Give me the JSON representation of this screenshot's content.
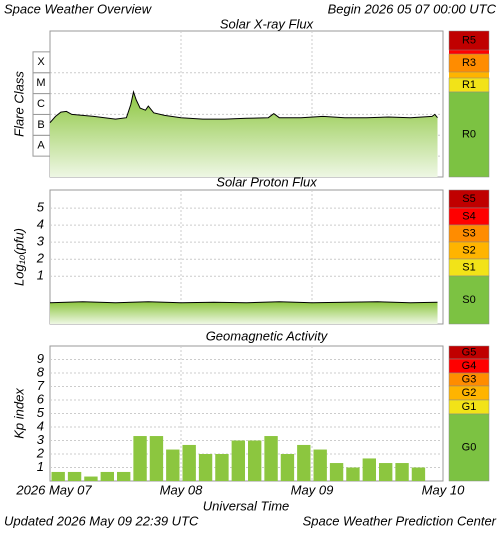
{
  "header": {
    "title": "Space Weather Overview",
    "begin": "Begin 2026 05 07 00:00 UTC"
  },
  "footer": {
    "updated": "Updated 2026 May 09 22:39 UTC",
    "credit": "Space Weather Prediction Center"
  },
  "x_axis": {
    "label": "Universal Time",
    "xlim": [
      0,
      72
    ],
    "xticks": [
      {
        "value": 0,
        "label": "2026 May 07"
      },
      {
        "value": 24,
        "label": "May 08"
      },
      {
        "value": 48,
        "label": "May 09"
      },
      {
        "value": 72,
        "label": "May 10"
      }
    ]
  },
  "chart_data": [
    {
      "type": "area",
      "title": "Solar X-ray Flux",
      "ylabel": "Flare Class",
      "log_scale": true,
      "color": "#8cc63f",
      "line_color": "#000000",
      "ylim": [
        1e-09,
        0.01
      ],
      "yticks": [
        {
          "value": 1e-08,
          "label": "A"
        },
        {
          "value": 1e-07,
          "label": "B"
        },
        {
          "value": 1e-06,
          "label": "C"
        },
        {
          "value": 1e-05,
          "label": "M"
        },
        {
          "value": 0.0001,
          "label": "X"
        }
      ],
      "x": [
        0,
        1,
        2,
        3,
        4,
        6,
        8,
        10,
        12,
        14,
        14.8,
        15.3,
        15.8,
        16.5,
        17.5,
        18,
        19,
        21,
        24,
        28,
        32,
        36,
        40,
        41,
        42,
        46,
        50,
        54,
        58,
        62,
        66,
        70,
        70.5,
        71
      ],
      "values": [
        4e-07,
        8e-07,
        1.3e-06,
        1.4e-06,
        1e-06,
        9e-07,
        8e-07,
        7e-07,
        6e-07,
        7e-07,
        3e-06,
        1.2e-05,
        5e-06,
        2e-06,
        1.6e-06,
        2.5e-06,
        1.2e-06,
        9e-07,
        7e-07,
        6e-07,
        6e-07,
        6.5e-07,
        7e-07,
        1.1e-06,
        7e-07,
        7e-07,
        8e-07,
        7e-07,
        7e-07,
        7.5e-07,
        7e-07,
        8e-07,
        1e-06,
        7e-07
      ],
      "scale": [
        {
          "label": "R5",
          "color": "#c00000"
        },
        {
          "label": "R3",
          "color": "#ff8c00"
        },
        {
          "label": "R1",
          "color": "#f2e318"
        },
        {
          "label": "R0",
          "color": "#7cc242"
        }
      ]
    },
    {
      "type": "area",
      "title": "Solar Proton Flux",
      "ylabel": "Log₁₀(pfu)",
      "log_scale": false,
      "color": "#8cc63f",
      "line_color": "#000000",
      "ylim": [
        -1.8,
        6.06
      ],
      "yticks": [
        1,
        2,
        3,
        4,
        5
      ],
      "x": [
        0,
        6,
        12,
        18,
        24,
        30,
        36,
        42,
        48,
        54,
        60,
        66,
        71
      ],
      "values": [
        -0.55,
        -0.5,
        -0.55,
        -0.5,
        -0.55,
        -0.52,
        -0.55,
        -0.5,
        -0.55,
        -0.52,
        -0.5,
        -0.55,
        -0.52
      ],
      "scale": [
        {
          "label": "S5",
          "color": "#c00000"
        },
        {
          "label": "S4",
          "color": "#ff0000"
        },
        {
          "label": "S3",
          "color": "#ff8c00"
        },
        {
          "label": "S2",
          "color": "#ffb400"
        },
        {
          "label": "S1",
          "color": "#f2e318"
        },
        {
          "label": "S0",
          "color": "#7cc242"
        }
      ]
    },
    {
      "type": "bar",
      "title": "Geomagnetic Activity",
      "ylabel": "Kp index",
      "color": "#8cc63f",
      "ylim": [
        0,
        10
      ],
      "yticks": [
        1,
        2,
        3,
        4,
        5,
        6,
        7,
        8,
        9
      ],
      "x": [
        0,
        3,
        6,
        9,
        12,
        15,
        18,
        21,
        24,
        27,
        30,
        33,
        36,
        39,
        42,
        45,
        48,
        51,
        54,
        57,
        60,
        63,
        66,
        69
      ],
      "values": [
        0.67,
        0.67,
        0.33,
        0.67,
        0.67,
        3.33,
        3.33,
        2.33,
        2.67,
        2,
        2,
        3,
        3,
        3.33,
        2,
        2.67,
        2.33,
        1.33,
        1,
        1.67,
        1.33,
        1.33,
        1,
        null
      ],
      "scale": [
        {
          "label": "G5",
          "color": "#c00000"
        },
        {
          "label": "G4",
          "color": "#ff0000"
        },
        {
          "label": "G3",
          "color": "#ff8c00"
        },
        {
          "label": "G2",
          "color": "#ffb400"
        },
        {
          "label": "G1",
          "color": "#f2e318"
        },
        {
          "label": "G0",
          "color": "#7cc242"
        }
      ]
    }
  ]
}
